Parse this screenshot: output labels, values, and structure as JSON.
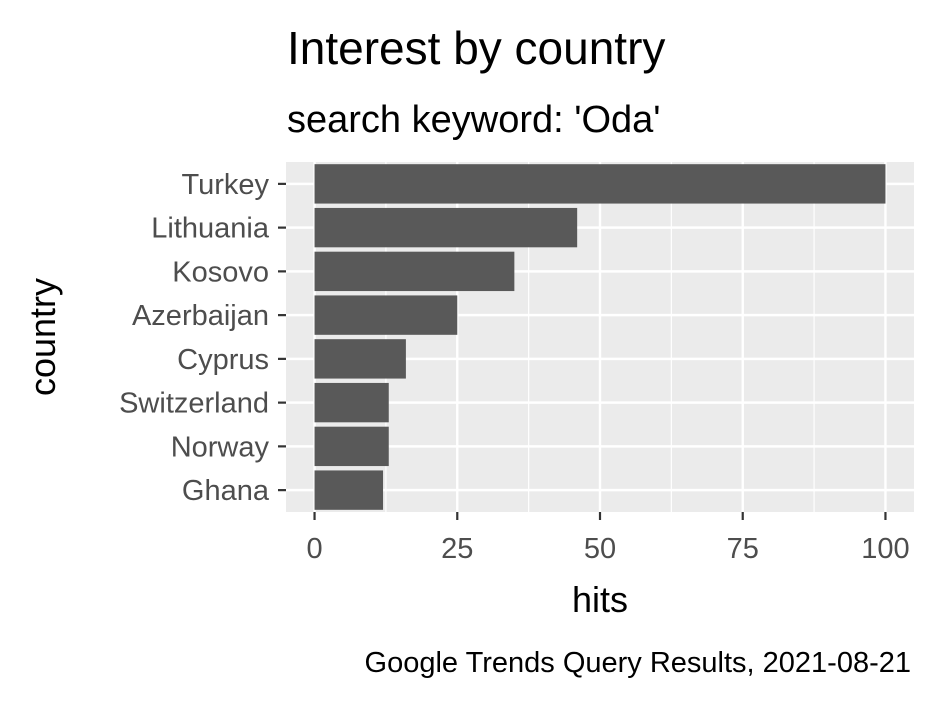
{
  "chart_data": {
    "type": "bar",
    "orientation": "horizontal",
    "title": "Interest by country",
    "subtitle": "search keyword: 'Oda'",
    "xlabel": "hits",
    "ylabel": "country",
    "caption": "Google Trends Query Results, 2021-08-21",
    "categories": [
      "Turkey",
      "Lithuania",
      "Kosovo",
      "Azerbaijan",
      "Cyprus",
      "Switzerland",
      "Norway",
      "Ghana"
    ],
    "values": [
      100,
      46,
      35,
      25,
      16,
      13,
      13,
      12
    ],
    "xlim": [
      -5,
      105
    ],
    "xticks": [
      0,
      25,
      50,
      75,
      100
    ],
    "xtick_labels": [
      "0",
      "25",
      "50",
      "75",
      "100"
    ],
    "grid": true,
    "colors": {
      "bar": "#595959",
      "panel_background": "#ebebeb",
      "gridline": "#ffffff",
      "tick_label": "#4d4d4d",
      "tick_mark": "#333333"
    }
  }
}
